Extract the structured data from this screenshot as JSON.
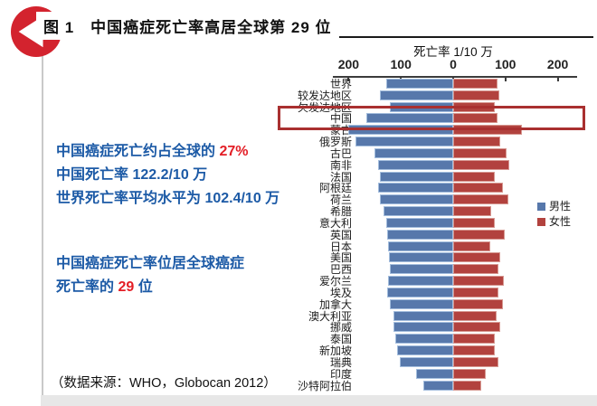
{
  "header": {
    "figure_title": "图 1　中国癌症死亡率高居全球第 29 位",
    "icon": "back-arrow-badge-icon",
    "icon_color": "#d3232e"
  },
  "annotations": {
    "text_colors": {
      "blue": "#1c5aa6",
      "red": "#e31e26"
    },
    "stats_primary": {
      "lines": [
        [
          [
            "中国癌症死亡约占全球的 ",
            "blue"
          ],
          [
            "27%",
            "red"
          ]
        ],
        [
          [
            "中国死亡率 122.2/10 万",
            "blue"
          ]
        ],
        [
          [
            "世界死亡率平均水平为 102.4/10 万",
            "blue"
          ]
        ]
      ]
    },
    "stats_secondary": {
      "lines": [
        [
          [
            "中国癌症死亡率位居全球癌症",
            "blue"
          ]
        ],
        [
          [
            "死亡率的 ",
            "blue"
          ],
          [
            "29",
            "red"
          ],
          [
            " 位",
            "blue"
          ]
        ]
      ]
    },
    "source": "（数据来源：WHO，Globocan 2012）"
  },
  "chart_data": {
    "type": "bar",
    "variant": "tornado-pyramid",
    "title": "死亡率 1/10 万",
    "xlabel": "死亡率 1/10 万",
    "ylabel": "",
    "xlim": [
      -230,
      235
    ],
    "grid": false,
    "legend_position": "right",
    "categories": [
      "世界",
      "较发达地区",
      "欠发达地区",
      "中国",
      "蒙古",
      "俄罗斯",
      "古巴",
      "南非",
      "法国",
      "阿根廷",
      "荷兰",
      "希腊",
      "意大利",
      "英国",
      "日本",
      "美国",
      "巴西",
      "爱尔兰",
      "埃及",
      "加拿大",
      "澳大利亚",
      "挪威",
      "泰国",
      "新加坡",
      "瑞典",
      "印度",
      "沙特阿拉伯"
    ],
    "series": [
      {
        "name": "男性",
        "side": "left",
        "color": "#5778ab",
        "edge_color": "#a3bddd",
        "values": [
          128,
          140,
          121,
          166,
          200,
          187,
          150,
          143,
          141,
          143,
          140,
          134,
          128,
          126,
          124,
          123,
          122,
          124,
          126,
          122,
          115,
          114,
          110,
          108,
          103,
          71,
          57
        ]
      },
      {
        "name": "女性",
        "side": "right",
        "color": "#b2423e",
        "edge_color": "#d69790",
        "values": [
          84,
          88,
          80,
          84,
          131,
          90,
          102,
          107,
          80,
          95,
          105,
          72,
          79,
          98,
          71,
          90,
          86,
          97,
          86,
          95,
          83,
          90,
          79,
          79,
          86,
          62,
          53
        ]
      }
    ],
    "x_ticks": [
      {
        "label": "200",
        "value": -200
      },
      {
        "label": "100",
        "value": -100
      },
      {
        "label": "0",
        "value": 0
      },
      {
        "label": "100",
        "value": 100
      },
      {
        "label": "200",
        "value": 200
      }
    ],
    "highlighted_category": "中国",
    "highlight_color": "#a93030"
  }
}
